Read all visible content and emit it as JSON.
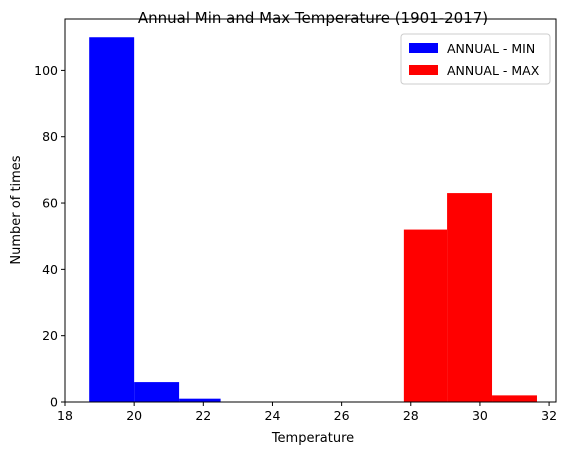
{
  "chart_data": {
    "type": "bar",
    "title": "Annual Min and Max Temperature (1901-2017)",
    "xlabel": "Temperature",
    "ylabel": "Number of times",
    "xlim": [
      18,
      32.2
    ],
    "ylim": [
      0,
      115.5
    ],
    "xticks": [
      18,
      20,
      22,
      24,
      26,
      28,
      30,
      32
    ],
    "yticks": [
      0,
      20,
      40,
      60,
      80,
      100
    ],
    "grid": false,
    "legend_position": "top-right",
    "series": [
      {
        "name": "ANNUAL - MIN",
        "color": "#0000ff",
        "bins": [
          {
            "x0": 18.7,
            "x1": 20.0,
            "count": 110
          },
          {
            "x0": 20.0,
            "x1": 21.3,
            "count": 6
          },
          {
            "x0": 21.3,
            "x1": 22.5,
            "count": 1
          }
        ]
      },
      {
        "name": "ANNUAL - MAX",
        "color": "#ff0000",
        "bins": [
          {
            "x0": 27.8,
            "x1": 29.05,
            "count": 52
          },
          {
            "x0": 29.05,
            "x1": 30.35,
            "count": 63
          },
          {
            "x0": 30.35,
            "x1": 31.65,
            "count": 2
          }
        ]
      }
    ]
  }
}
